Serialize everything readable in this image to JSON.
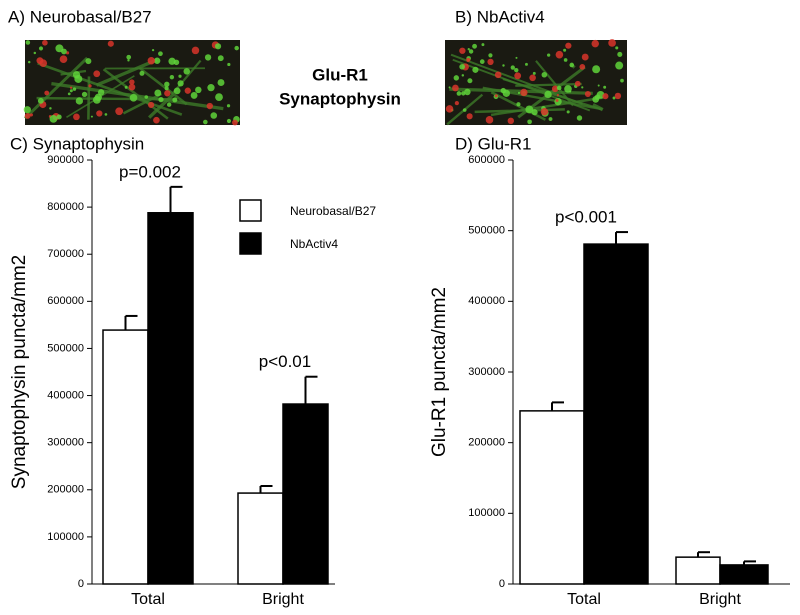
{
  "images": {
    "labels": [
      "A) Neurobasal/B27",
      "B) NbActiv4"
    ],
    "stain_labels": [
      "Glu-R1",
      "Synaptophysin"
    ],
    "stain_colors": [
      "#cc1111",
      "#1a9a1a"
    ]
  },
  "chart_data": [
    {
      "type": "bar",
      "title": "C) Synaptophysin",
      "y_label": "Synaptophysin puncta/mm2",
      "categories": [
        "Total",
        "Bright"
      ],
      "series": [
        {
          "name": "Neurobasal/B27",
          "color": "#ffffff",
          "values": [
            539000,
            193000
          ],
          "errors": [
            30000,
            15000
          ]
        },
        {
          "name": "NbActiv4",
          "color": "#000000",
          "values": [
            788000,
            382000
          ],
          "errors": [
            55000,
            58000
          ]
        }
      ],
      "ylim": [
        0,
        900000
      ],
      "yticks": [
        0,
        100000,
        200000,
        300000,
        400000,
        500000,
        600000,
        700000,
        800000,
        900000
      ],
      "annotations": [
        "p=0.002",
        "p<0.01"
      ],
      "legend": "upper right"
    },
    {
      "type": "bar",
      "title": "D) Glu-R1",
      "y_label": "Glu-R1 puncta/mm2",
      "categories": [
        "Total",
        "Bright"
      ],
      "series": [
        {
          "color": "#ffffff",
          "values": [
            245000,
            38000
          ],
          "errors": [
            12000,
            7000
          ]
        },
        {
          "color": "#000000",
          "values": [
            481000,
            27000
          ],
          "errors": [
            17000,
            5000
          ]
        }
      ],
      "ylim": [
        0,
        600000
      ],
      "yticks": [
        0,
        100000,
        200000,
        300000,
        400000,
        500000,
        600000
      ],
      "annotations": [
        "p<0.001"
      ]
    }
  ]
}
